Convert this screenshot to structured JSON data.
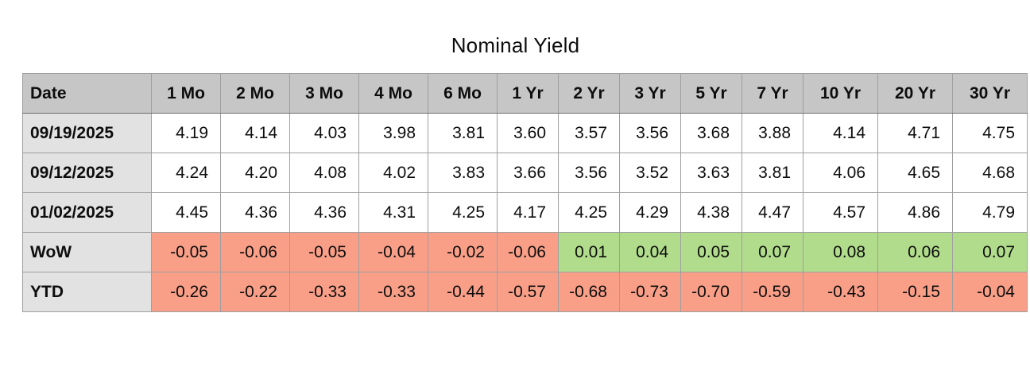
{
  "title": "Nominal Yield",
  "colors": {
    "header_bg": "#c6c6c6",
    "row_label_bg": "#e2e2e2",
    "negative_bg": "#f99f88",
    "positive_bg": "#b1dc8c",
    "grid_line": "#9f9f9f",
    "text": "#0d0d0d"
  },
  "chart_data": {
    "type": "table",
    "title": "Nominal Yield",
    "columns": [
      "Date",
      "1 Mo",
      "2 Mo",
      "3 Mo",
      "4 Mo",
      "6 Mo",
      "1 Yr",
      "2 Yr",
      "3 Yr",
      "5 Yr",
      "7 Yr",
      "10 Yr",
      "20 Yr",
      "30 Yr"
    ],
    "rows": [
      {
        "label": "09/19/2025",
        "kind": "yield",
        "values": [
          4.19,
          4.14,
          4.03,
          3.98,
          3.81,
          3.6,
          3.57,
          3.56,
          3.68,
          3.88,
          4.14,
          4.71,
          4.75
        ]
      },
      {
        "label": "09/12/2025",
        "kind": "yield",
        "values": [
          4.24,
          4.2,
          4.08,
          4.02,
          3.83,
          3.66,
          3.56,
          3.52,
          3.63,
          3.81,
          4.06,
          4.65,
          4.68
        ]
      },
      {
        "label": "01/02/2025",
        "kind": "yield",
        "values": [
          4.45,
          4.36,
          4.36,
          4.31,
          4.25,
          4.17,
          4.25,
          4.29,
          4.38,
          4.47,
          4.57,
          4.86,
          4.79
        ]
      },
      {
        "label": "WoW",
        "kind": "change",
        "values": [
          -0.05,
          -0.06,
          -0.05,
          -0.04,
          -0.02,
          -0.06,
          0.01,
          0.04,
          0.05,
          0.07,
          0.08,
          0.06,
          0.07
        ]
      },
      {
        "label": "YTD",
        "kind": "change",
        "values": [
          -0.26,
          -0.22,
          -0.33,
          -0.33,
          -0.44,
          -0.57,
          -0.68,
          -0.73,
          -0.7,
          -0.59,
          -0.43,
          -0.15,
          -0.04
        ]
      }
    ],
    "conditional_format": {
      "applies_to": "change rows (WoW, YTD)",
      "negative_bg": "#f99f88",
      "positive_bg": "#b1dc8c"
    },
    "value_format": "0.00",
    "grid": true,
    "legend": false
  }
}
